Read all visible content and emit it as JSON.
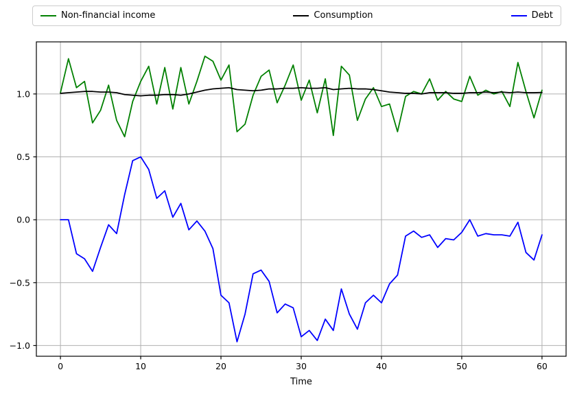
{
  "figure": {
    "background": "#ffffff",
    "plot_background": "#ffffff"
  },
  "legend": {
    "items": [
      {
        "label": "Non-financial income",
        "color": "#008000"
      },
      {
        "label": "Consumption",
        "color": "#000000"
      },
      {
        "label": "Debt",
        "color": "#0000ff"
      }
    ]
  },
  "colors": {
    "grid": "#b0b0b0",
    "spine": "#000000",
    "tick": "#000000",
    "text": "#000000"
  },
  "chart_data": {
    "type": "line",
    "title": "",
    "xlabel": "Time",
    "ylabel": "",
    "grid": true,
    "legend_position": "top",
    "xlim": [
      -3,
      63
    ],
    "ylim": [
      -1.085,
      1.414
    ],
    "xticks": {
      "values": [
        0,
        10,
        20,
        30,
        40,
        50,
        60
      ],
      "labels": [
        "0",
        "10",
        "20",
        "30",
        "40",
        "50",
        "60"
      ]
    },
    "yticks": {
      "values": [
        1.0,
        0.5,
        0.0,
        -0.5,
        -1.0
      ],
      "labels": [
        "1.0",
        "0.5",
        "0.0",
        "−0.5",
        "−1.0"
      ]
    },
    "x": [
      0,
      1,
      2,
      3,
      4,
      5,
      6,
      7,
      8,
      9,
      10,
      11,
      12,
      13,
      14,
      15,
      16,
      17,
      18,
      19,
      20,
      21,
      22,
      23,
      24,
      25,
      26,
      27,
      28,
      29,
      30,
      31,
      32,
      33,
      34,
      35,
      36,
      37,
      38,
      39,
      40,
      41,
      42,
      43,
      44,
      45,
      46,
      47,
      48,
      49,
      50,
      51,
      52,
      53,
      54,
      55,
      56,
      57,
      58,
      59,
      60
    ],
    "series": [
      {
        "name": "Non-financial income",
        "color": "#008000",
        "values": [
          1.01,
          1.28,
          1.05,
          1.1,
          0.77,
          0.87,
          1.07,
          0.79,
          0.66,
          0.94,
          1.1,
          1.22,
          0.92,
          1.21,
          0.88,
          1.21,
          0.92,
          1.1,
          1.3,
          1.26,
          1.11,
          1.23,
          0.7,
          0.76,
          0.99,
          1.14,
          1.19,
          0.93,
          1.07,
          1.23,
          0.95,
          1.11,
          0.85,
          1.12,
          0.67,
          1.22,
          1.15,
          0.79,
          0.96,
          1.05,
          0.9,
          0.92,
          0.7,
          0.98,
          1.02,
          1.0,
          1.12,
          0.95,
          1.02,
          0.96,
          0.94,
          1.14,
          0.99,
          1.03,
          1.0,
          1.02,
          0.9,
          1.25,
          1.02,
          0.81,
          1.03
        ]
      },
      {
        "name": "Consumption",
        "color": "#000000",
        "values": [
          1.005,
          1.01,
          1.015,
          1.02,
          1.02,
          1.015,
          1.015,
          1.01,
          0.995,
          0.99,
          0.985,
          0.99,
          0.99,
          0.995,
          0.995,
          0.99,
          1.0,
          1.015,
          1.03,
          1.04,
          1.045,
          1.05,
          1.035,
          1.03,
          1.025,
          1.03,
          1.04,
          1.04,
          1.045,
          1.045,
          1.05,
          1.045,
          1.045,
          1.05,
          1.035,
          1.04,
          1.045,
          1.04,
          1.04,
          1.035,
          1.025,
          1.015,
          1.01,
          1.005,
          1.005,
          1.0,
          1.01,
          1.01,
          1.01,
          1.005,
          1.005,
          1.01,
          1.01,
          1.015,
          1.01,
          1.015,
          1.01,
          1.015,
          1.01,
          1.01,
          1.012
        ]
      },
      {
        "name": "Debt",
        "color": "#0000ff",
        "values": [
          0.0,
          0.0,
          -0.27,
          -0.31,
          -0.41,
          -0.22,
          -0.04,
          -0.11,
          0.2,
          0.47,
          0.5,
          0.4,
          0.17,
          0.23,
          0.02,
          0.13,
          -0.08,
          -0.01,
          -0.09,
          -0.23,
          -0.6,
          -0.66,
          -0.97,
          -0.75,
          -0.43,
          -0.4,
          -0.49,
          -0.74,
          -0.67,
          -0.7,
          -0.93,
          -0.88,
          -0.96,
          -0.79,
          -0.88,
          -0.55,
          -0.75,
          -0.87,
          -0.66,
          -0.6,
          -0.66,
          -0.51,
          -0.44,
          -0.13,
          -0.09,
          -0.14,
          -0.12,
          -0.22,
          -0.15,
          -0.16,
          -0.1,
          0.0,
          -0.13,
          -0.11,
          -0.12,
          -0.12,
          -0.13,
          -0.02,
          -0.26,
          -0.32,
          -0.12
        ]
      }
    ]
  }
}
